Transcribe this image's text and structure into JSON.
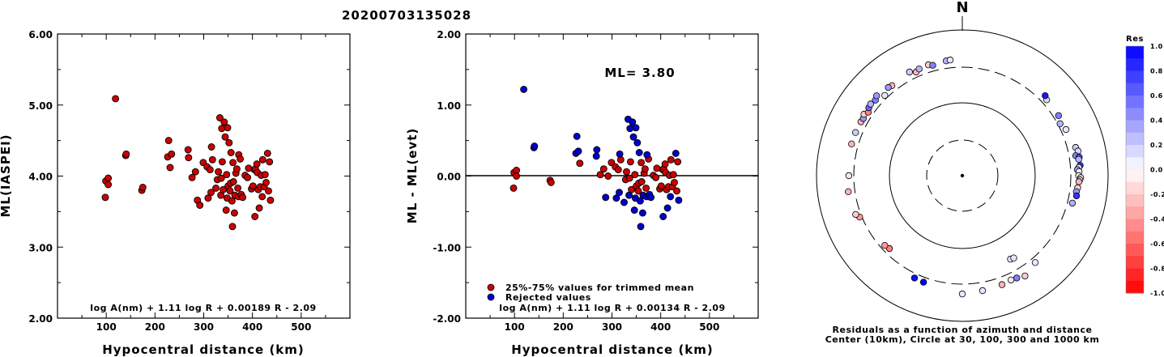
{
  "title": "20200703135028",
  "chart_data": [
    {
      "type": "scatter",
      "xlabel": "Hypocentral distance (km)",
      "ylabel": "ML(IASPEI)",
      "xlim": [
        0,
        600
      ],
      "ylim": [
        2.0,
        6.0
      ],
      "xticks": [
        "100",
        "200",
        "300",
        "400",
        "500"
      ],
      "yticks": [
        "2.00",
        "3.00",
        "4.00",
        "5.00",
        "6.00"
      ],
      "formula": "log A(nm) + 1.11 log R + 0.00189 R - 2.09",
      "series": [
        {
          "color": "#cc0000",
          "points": [
            [
              98,
              3.7
            ],
            [
              99,
              3.93
            ],
            [
              104,
              3.88
            ],
            [
              104,
              3.97
            ],
            [
              119,
              5.09
            ],
            [
              140,
              4.29
            ],
            [
              141,
              4.31
            ],
            [
              173,
              3.8
            ],
            [
              175,
              3.84
            ],
            [
              226,
              4.27
            ],
            [
              228,
              4.5
            ],
            [
              231,
              4.12
            ],
            [
              234,
              4.31
            ],
            [
              268,
              4.37
            ],
            [
              269,
              4.26
            ],
            [
              276,
              3.98
            ],
            [
              283,
              4.06
            ],
            [
              287,
              3.66
            ],
            [
              292,
              3.59
            ],
            [
              299,
              4.19
            ],
            [
              307,
              4.13
            ],
            [
              309,
              3.69
            ],
            [
              313,
              4.09
            ],
            [
              315,
              3.77
            ],
            [
              316,
              4.41
            ],
            [
              318,
              4.23
            ],
            [
              325,
              3.83
            ],
            [
              328,
              3.95
            ],
            [
              330,
              4.06
            ],
            [
              333,
              4.82
            ],
            [
              335,
              3.73
            ],
            [
              336,
              3.97
            ],
            [
              337,
              4.67
            ],
            [
              338,
              4.2
            ],
            [
              340,
              3.81
            ],
            [
              342,
              4.76
            ],
            [
              344,
              4.55
            ],
            [
              346,
              3.52
            ],
            [
              347,
              4.02
            ],
            [
              348,
              3.69
            ],
            [
              349,
              4.68
            ],
            [
              350,
              3.86
            ],
            [
              352,
              4.47
            ],
            [
              354,
              3.79
            ],
            [
              355,
              3.9
            ],
            [
              356,
              4.33
            ],
            [
              358,
              3.65
            ],
            [
              359,
              3.29
            ],
            [
              360,
              4.19
            ],
            [
              361,
              3.92
            ],
            [
              363,
              3.48
            ],
            [
              364,
              3.73
            ],
            [
              366,
              4.04
            ],
            [
              368,
              4.1
            ],
            [
              370,
              3.83
            ],
            [
              371,
              3.71
            ],
            [
              372,
              4.3
            ],
            [
              375,
              4.24
            ],
            [
              377,
              3.74
            ],
            [
              380,
              3.7
            ],
            [
              385,
              4.01
            ],
            [
              390,
              3.98
            ],
            [
              392,
              4.11
            ],
            [
              398,
              3.82
            ],
            [
              401,
              3.86
            ],
            [
              404,
              4.09
            ],
            [
              405,
              3.43
            ],
            [
              406,
              4.1
            ],
            [
              409,
              4.17
            ],
            [
              410,
              4.05
            ],
            [
              412,
              3.81
            ],
            [
              414,
              3.55
            ],
            [
              416,
              3.85
            ],
            [
              418,
              4.01
            ],
            [
              420,
              3.71
            ],
            [
              421,
              4.23
            ],
            [
              424,
              3.85
            ],
            [
              426,
              4.02
            ],
            [
              428,
              3.91
            ],
            [
              431,
              4.32
            ],
            [
              433,
              3.79
            ],
            [
              435,
              4.2
            ],
            [
              437,
              3.66
            ]
          ]
        }
      ]
    },
    {
      "type": "scatter",
      "xlabel": "Hypocentral distance (km)",
      "ylabel": "ML - ML(evt)",
      "xlim": [
        0,
        600
      ],
      "ylim": [
        -2.0,
        2.0
      ],
      "xticks": [
        "100",
        "200",
        "300",
        "400",
        "500"
      ],
      "yticks": [
        "-2.00",
        "-1.00",
        "0.00",
        "1.00",
        "2.00"
      ],
      "annotation": "ML= 3.80",
      "formula": "log A(nm) + 1.11 log R + 0.00134 R - 2.09",
      "reference_line_y": 0.0,
      "legend": {
        "position": "bottom-left",
        "entries": [
          "25%-75% values for trimmed mean",
          "Rejected values"
        ]
      },
      "series": [
        {
          "name": "25%-75% values for trimmed mean",
          "color": "#cc0000",
          "points": [
            [
              98,
              -0.17
            ],
            [
              99,
              0.05
            ],
            [
              104,
              0.08
            ],
            [
              104,
              0.0
            ],
            [
              173,
              -0.06
            ],
            [
              175,
              -0.09
            ],
            [
              234,
              0.18
            ],
            [
              276,
              0.02
            ],
            [
              283,
              0.1
            ],
            [
              292,
              0.0
            ],
            [
              299,
              0.19
            ],
            [
              307,
              0.13
            ],
            [
              313,
              0.09
            ],
            [
              318,
              0.23
            ],
            [
              328,
              -0.05
            ],
            [
              330,
              0.06
            ],
            [
              336,
              -0.03
            ],
            [
              338,
              0.2
            ],
            [
              340,
              -0.19
            ],
            [
              347,
              0.02
            ],
            [
              350,
              -0.14
            ],
            [
              354,
              -0.21
            ],
            [
              355,
              -0.1
            ],
            [
              360,
              0.19
            ],
            [
              361,
              -0.08
            ],
            [
              366,
              0.04
            ],
            [
              368,
              0.1
            ],
            [
              370,
              -0.17
            ],
            [
              375,
              0.24
            ],
            [
              385,
              0.01
            ],
            [
              390,
              -0.02
            ],
            [
              392,
              0.11
            ],
            [
              398,
              -0.18
            ],
            [
              401,
              -0.14
            ],
            [
              404,
              0.09
            ],
            [
              406,
              0.1
            ],
            [
              409,
              0.17
            ],
            [
              410,
              0.05
            ],
            [
              412,
              -0.19
            ],
            [
              416,
              -0.15
            ],
            [
              418,
              0.01
            ],
            [
              421,
              0.23
            ],
            [
              424,
              -0.15
            ],
            [
              426,
              0.02
            ],
            [
              428,
              -0.09
            ],
            [
              433,
              -0.21
            ],
            [
              435,
              0.2
            ]
          ]
        },
        {
          "name": "Rejected values",
          "color": "#0000cc",
          "points": [
            [
              119,
              1.22
            ],
            [
              140,
              0.4
            ],
            [
              141,
              0.42
            ],
            [
              226,
              0.32
            ],
            [
              228,
              0.56
            ],
            [
              231,
              0.35
            ],
            [
              268,
              0.28
            ],
            [
              269,
              0.37
            ],
            [
              287,
              -0.3
            ],
            [
              309,
              -0.31
            ],
            [
              315,
              -0.23
            ],
            [
              316,
              0.31
            ],
            [
              325,
              -0.37
            ],
            [
              333,
              0.8
            ],
            [
              335,
              -0.27
            ],
            [
              337,
              0.67
            ],
            [
              342,
              0.76
            ],
            [
              344,
              0.55
            ],
            [
              346,
              -0.48
            ],
            [
              348,
              -0.31
            ],
            [
              349,
              0.68
            ],
            [
              352,
              0.47
            ],
            [
              356,
              0.33
            ],
            [
              358,
              -0.35
            ],
            [
              359,
              -0.71
            ],
            [
              363,
              -0.52
            ],
            [
              364,
              -0.27
            ],
            [
              371,
              -0.29
            ],
            [
              372,
              0.3
            ],
            [
              377,
              -0.26
            ],
            [
              380,
              -0.3
            ],
            [
              405,
              -0.57
            ],
            [
              414,
              -0.45
            ],
            [
              420,
              -0.29
            ],
            [
              431,
              0.32
            ],
            [
              437,
              -0.34
            ]
          ]
        }
      ]
    },
    {
      "type": "polar-scatter",
      "north_label": "N",
      "caption_line1": "Residuals as a function of azimuth and distance",
      "caption_line2": "Center (10km), Circle at 30, 100, 300 and 1000 km",
      "colorbar": {
        "title": "Res",
        "ticks": [
          "1.0",
          "0.8",
          "0.6",
          "0.4",
          "0.2",
          "0.0",
          "-0.2",
          "-0.4",
          "-0.6",
          "-0.8",
          "-1.0"
        ],
        "top_color": "#0000ff",
        "bottom_color": "#ff0000"
      },
      "points_azimuth_deg_distance_km_residual": [
        [
          48,
          360,
          0.15
        ],
        [
          46,
          380,
          0.9
        ],
        [
          58,
          360,
          0.5
        ],
        [
          62,
          330,
          0.3
        ],
        [
          66,
          360,
          0.1
        ],
        [
          76,
          400,
          0.2
        ],
        [
          78,
          420,
          0.15
        ],
        [
          80,
          380,
          0.5
        ],
        [
          81,
          420,
          0.7
        ],
        [
          82,
          410,
          0.3
        ],
        [
          85,
          420,
          0.8
        ],
        [
          86,
          400,
          0.1
        ],
        [
          87,
          380,
          0.35
        ],
        [
          88,
          400,
          0.05
        ],
        [
          90,
          395,
          -0.05
        ],
        [
          91,
          420,
          -0.1
        ],
        [
          92,
          410,
          0.15
        ],
        [
          93,
          400,
          -0.3
        ],
        [
          96,
          390,
          -0.2
        ],
        [
          98,
          380,
          0.4
        ],
        [
          100,
          390,
          0.8
        ],
        [
          104,
          360,
          0.3
        ],
        [
          140,
          360,
          0.1
        ],
        [
          148,
          420,
          -0.2
        ],
        [
          152,
          390,
          0.5
        ],
        [
          155,
          380,
          -0.1
        ],
        [
          160,
          390,
          -0.3
        ],
        [
          170,
          400,
          0.1
        ],
        [
          150,
          210,
          0.1
        ],
        [
          148,
          215,
          0.1
        ],
        [
          200,
          360,
          1.0
        ],
        [
          205,
          355,
          0.95
        ],
        [
          180,
          420,
          0.1
        ],
        [
          225,
          260,
          -0.5
        ],
        [
          228,
          270,
          -0.4
        ],
        [
          248,
          330,
          -0.4
        ],
        [
          250,
          360,
          -0.2
        ],
        [
          262,
          380,
          -0.3
        ],
        [
          270,
          360,
          -0.1
        ],
        [
          286,
          380,
          -0.3
        ],
        [
          292,
          380,
          0.2
        ],
        [
          298,
          375,
          -0.3
        ],
        [
          300,
          370,
          0.4
        ],
        [
          302,
          390,
          -0.2
        ],
        [
          304,
          360,
          -0.5
        ],
        [
          306,
          385,
          0.6
        ],
        [
          308,
          395,
          0.3
        ],
        [
          311,
          380,
          0.5
        ],
        [
          313,
          405,
          0.4
        ],
        [
          316,
          340,
          0.1
        ],
        [
          322,
          370,
          -0.3
        ],
        [
          320,
          380,
          0.4
        ],
        [
          333,
          395,
          0.2
        ],
        [
          336,
          360,
          -0.3
        ],
        [
          338,
          380,
          0.3
        ],
        [
          343,
          390,
          -0.2
        ],
        [
          345,
          370,
          0.5
        ],
        [
          352,
          390,
          0.3
        ],
        [
          354,
          395,
          0.1
        ]
      ]
    }
  ]
}
